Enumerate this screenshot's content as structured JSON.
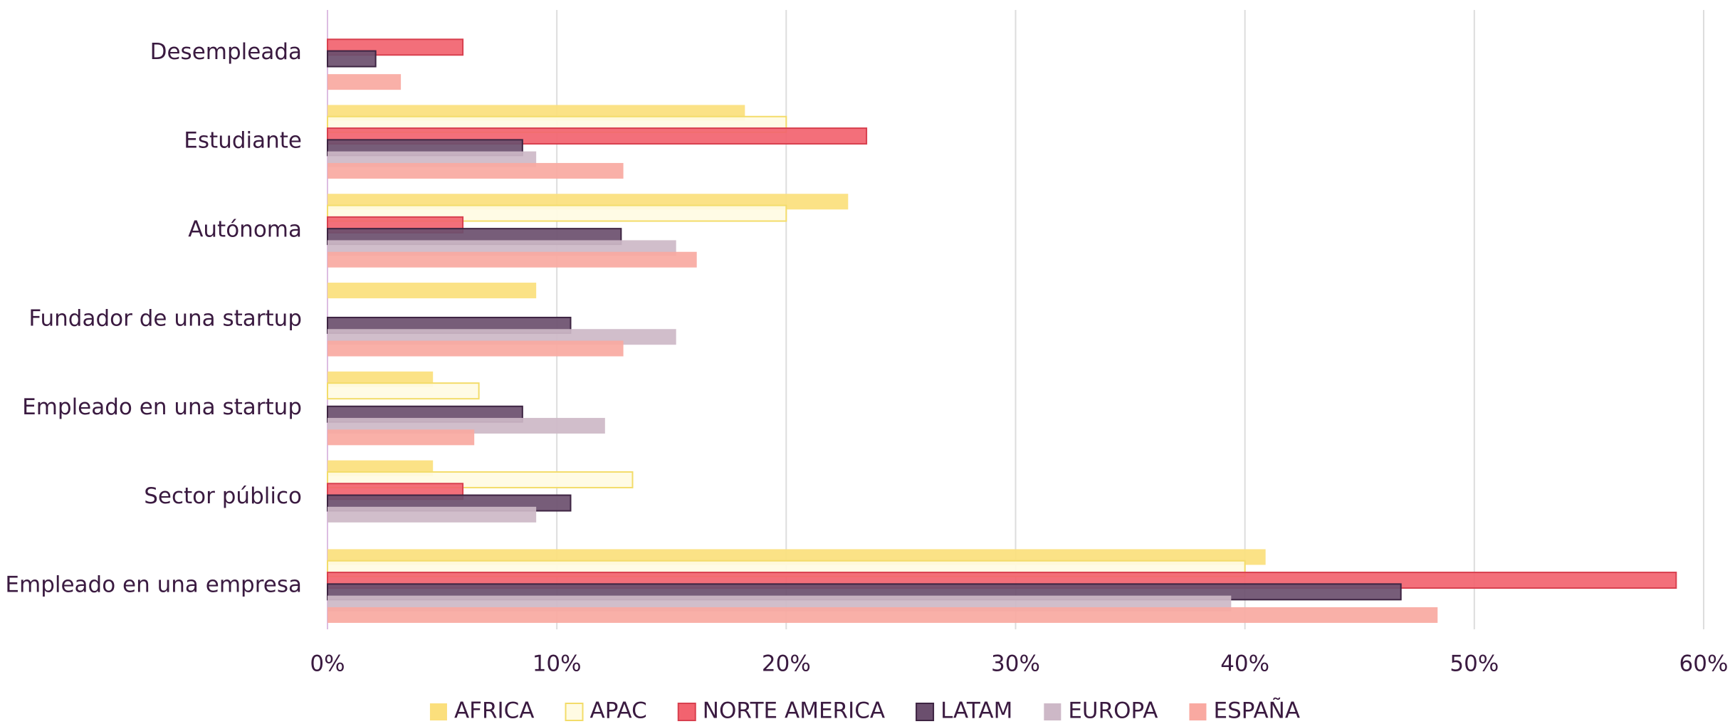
{
  "chart_data": {
    "type": "hbar",
    "categories": [
      "Desempleada",
      "Estudiante",
      "Autónoma",
      "Fundador de una startup",
      "Empleado en una startup",
      "Sector público",
      "Empleado en una empresa"
    ],
    "series": [
      {
        "name": "AFRICA",
        "color": "#fbdf7c",
        "values": [
          null,
          18.2,
          22.7,
          9.1,
          4.6,
          4.6,
          40.9
        ]
      },
      {
        "name": "APAC",
        "color": "#fffbe3",
        "values": [
          null,
          20.0,
          20.0,
          null,
          6.6,
          13.3,
          40.0
        ]
      },
      {
        "name": "NORTE AMERICA",
        "color": "#f2636f",
        "values": [
          5.9,
          23.5,
          5.9,
          null,
          null,
          5.9,
          58.8
        ]
      },
      {
        "name": "LATAM",
        "color": "#6b4f6e",
        "values": [
          2.1,
          8.5,
          12.8,
          10.6,
          8.5,
          10.6,
          46.8
        ]
      },
      {
        "name": "EUROPA",
        "color": "#cdb8c7",
        "values": [
          null,
          9.1,
          15.2,
          15.2,
          12.1,
          9.1,
          39.4
        ]
      },
      {
        "name": "ESPAÑA",
        "color": "#f9a9a1",
        "values": [
          3.2,
          12.9,
          16.1,
          12.9,
          6.4,
          null,
          48.4
        ]
      }
    ],
    "xlim": [
      0,
      60
    ],
    "xticks": [
      {
        "value": 0,
        "label": "0%"
      },
      {
        "value": 10,
        "label": "10%"
      },
      {
        "value": 20,
        "label": "20%"
      },
      {
        "value": 30,
        "label": "30%"
      },
      {
        "value": 40,
        "label": "40%"
      },
      {
        "value": 50,
        "label": "50%"
      },
      {
        "value": 60,
        "label": "60%"
      }
    ],
    "grid": true,
    "legend": "bottom"
  }
}
